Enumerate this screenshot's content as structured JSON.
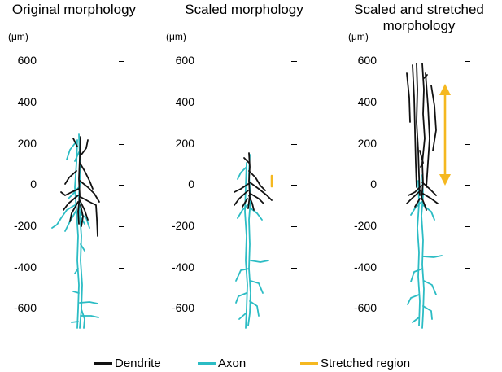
{
  "panels": [
    {
      "title_lines": [
        "Original morphology"
      ],
      "unit": "(μm)",
      "ticks": [
        "600",
        "400",
        "200",
        "0",
        "-200",
        "-400",
        "-600"
      ]
    },
    {
      "title_lines": [
        "Scaled morphology"
      ],
      "unit": "(μm)",
      "ticks": [
        "600",
        "400",
        "200",
        "0",
        "-200",
        "-400",
        "-600"
      ]
    },
    {
      "title_lines": [
        "Scaled and stretched",
        "morphology"
      ],
      "unit": "(μm)",
      "ticks": [
        "600",
        "400",
        "200",
        "0",
        "-200",
        "-400",
        "-600"
      ]
    }
  ],
  "legend": [
    {
      "label": "Dendrite",
      "color": "#111111"
    },
    {
      "label": "Axon",
      "color": "#2bbcc4"
    },
    {
      "label": "Stretched region",
      "color": "#f5b820"
    }
  ],
  "colors": {
    "dendrite": "#111111",
    "axon": "#2bbcc4",
    "stretched": "#f5b820"
  }
}
